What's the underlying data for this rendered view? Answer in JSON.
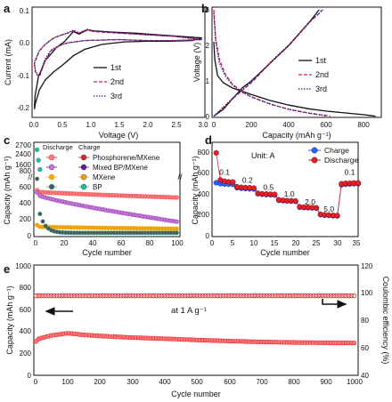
{
  "colors": {
    "black": "#111111",
    "red": "#e0202a",
    "red_dashed": "#d81b60",
    "purple": "#6a1b9a",
    "navy": "#1a237e",
    "blue": "#2962ff",
    "pink": "#e040fb",
    "gold": "#f4a300",
    "teal": "#17c3a6",
    "gray": "#555555",
    "red_light": "#ff7a7a",
    "purple_light": "#c875d8"
  },
  "chart_data": [
    {
      "id": "a",
      "panel_label": "a",
      "type": "line",
      "xlabel": "Voltage (V)",
      "ylabel": "Current (mA)",
      "xlim": [
        0.0,
        3.0
      ],
      "ylim": [
        -0.22,
        0.11
      ],
      "xticks": [
        "0.0",
        "0.5",
        "1.0",
        "1.5",
        "2.0",
        "2.5",
        "3.0"
      ],
      "yticks": [
        "-0.2",
        "-0.1",
        "0.0",
        "0.1"
      ],
      "legend": "center-right",
      "series": [
        {
          "name": "1st",
          "color_key": "black",
          "dash": "",
          "x": [
            0.01,
            0.03,
            0.1,
            0.2,
            0.35,
            0.5,
            0.6,
            0.7,
            0.9,
            1.2,
            1.6,
            2.0,
            2.4,
            2.8,
            2.98,
            2.98,
            2.6,
            2.2,
            1.8,
            1.4,
            1.05,
            0.95,
            0.8,
            0.7,
            0.55,
            0.4,
            0.2,
            0.08,
            0.02,
            0.01
          ],
          "y": [
            -0.2,
            -0.18,
            -0.14,
            -0.11,
            -0.085,
            -0.065,
            -0.05,
            -0.035,
            -0.015,
            0.0,
            0.008,
            0.01,
            0.01,
            0.012,
            0.02,
            0.02,
            0.025,
            0.03,
            0.035,
            0.038,
            0.042,
            0.045,
            0.032,
            0.04,
            0.01,
            -0.01,
            -0.05,
            -0.1,
            -0.16,
            -0.2
          ]
        },
        {
          "name": "2nd",
          "color_key": "red_dashed",
          "dash": "4,2",
          "x": [
            0.01,
            0.03,
            0.1,
            0.2,
            0.3,
            0.4,
            0.5,
            0.6,
            0.9,
            1.5,
            2.0,
            2.5,
            2.98,
            2.98,
            2.5,
            2.0,
            1.5,
            1.05,
            0.95,
            0.8,
            0.7,
            0.6,
            0.5,
            0.35,
            0.2,
            0.1,
            0.03,
            0.01
          ],
          "y": [
            -0.06,
            -0.09,
            -0.1,
            -0.05,
            -0.02,
            -0.01,
            0.0,
            0.005,
            0.012,
            0.015,
            0.012,
            0.012,
            0.015,
            0.015,
            0.025,
            0.03,
            0.035,
            0.04,
            0.046,
            0.035,
            0.042,
            0.035,
            0.03,
            0.02,
            0.0,
            -0.02,
            -0.05,
            -0.06
          ]
        },
        {
          "name": "3rd",
          "color_key": "navy",
          "dash": "1.5,1.5",
          "x": [
            0.01,
            0.03,
            0.1,
            0.2,
            0.3,
            0.4,
            0.5,
            0.6,
            0.9,
            1.5,
            2.0,
            2.5,
            2.98,
            2.98,
            2.5,
            2.0,
            1.5,
            1.05,
            0.95,
            0.8,
            0.7,
            0.6,
            0.5,
            0.35,
            0.2,
            0.1,
            0.03,
            0.01
          ],
          "y": [
            -0.055,
            -0.085,
            -0.095,
            -0.045,
            -0.018,
            -0.008,
            0.0,
            0.005,
            0.012,
            0.015,
            0.012,
            0.012,
            0.015,
            0.015,
            0.025,
            0.03,
            0.036,
            0.042,
            0.047,
            0.036,
            0.044,
            0.036,
            0.03,
            0.02,
            0.0,
            -0.018,
            -0.045,
            -0.055
          ]
        }
      ]
    },
    {
      "id": "b",
      "panel_label": "b",
      "type": "line",
      "xlabel": "Capacity (mAh g⁻¹)",
      "ylabel": "Voltage (V)",
      "xlim": [
        0,
        900
      ],
      "ylim": [
        0,
        3
      ],
      "xticks": [
        "0",
        "200",
        "400",
        "600",
        "800"
      ],
      "yticks": [
        "0",
        "1",
        "2",
        "3"
      ],
      "legend": "center-right",
      "series": [
        {
          "name": "1st",
          "color_key": "black",
          "dash": "",
          "x": [
            0,
            5,
            20,
            50,
            100,
            200,
            300,
            400,
            500,
            600,
            700,
            800,
            840,
            860,
            null,
            0,
            50,
            100,
            150,
            200,
            300,
            400,
            500,
            530,
            560
          ],
          "y": [
            2.1,
            1.6,
            1.15,
            0.95,
            0.8,
            0.62,
            0.45,
            0.32,
            0.22,
            0.15,
            0.1,
            0.05,
            0.02,
            0.01,
            null,
            0.01,
            0.2,
            0.5,
            0.8,
            1.0,
            1.5,
            2.0,
            2.6,
            2.8,
            3.0
          ]
        },
        {
          "name": "2nd",
          "color_key": "red_dashed",
          "dash": "4,2",
          "x": [
            0,
            10,
            30,
            60,
            100,
            150,
            200,
            300,
            400,
            500,
            600,
            620,
            null,
            0,
            50,
            100,
            200,
            300,
            400,
            500,
            560,
            580
          ],
          "y": [
            3.0,
            2.2,
            1.6,
            1.2,
            0.9,
            0.7,
            0.55,
            0.35,
            0.2,
            0.1,
            0.03,
            0.01,
            null,
            0.01,
            0.25,
            0.5,
            0.95,
            1.5,
            2.0,
            2.6,
            2.9,
            3.0
          ]
        },
        {
          "name": "3rd",
          "color_key": "navy",
          "dash": "1.5,1.5",
          "x": [
            0,
            10,
            30,
            60,
            100,
            150,
            200,
            300,
            400,
            500,
            580,
            600,
            null,
            0,
            50,
            100,
            200,
            300,
            400,
            500,
            560,
            575
          ],
          "y": [
            2.9,
            2.1,
            1.5,
            1.15,
            0.88,
            0.68,
            0.55,
            0.35,
            0.2,
            0.1,
            0.03,
            0.01,
            null,
            0.01,
            0.26,
            0.52,
            0.97,
            1.52,
            2.02,
            2.62,
            2.9,
            3.0
          ]
        }
      ]
    },
    {
      "id": "c",
      "panel_label": "c",
      "type": "scatter",
      "xlabel": "Cycle number",
      "ylabel": "Capacity (mAh g⁻¹)",
      "xlim": [
        0,
        100
      ],
      "ylim": [
        0,
        800
      ],
      "xticks": [
        "0",
        "20",
        "40",
        "60",
        "80",
        "100"
      ],
      "yticks": [
        "0",
        "200",
        "400",
        "600",
        "800"
      ],
      "upper_ticks": [
        "1600",
        "2400",
        "2700"
      ],
      "legend_headers": [
        "Discharge",
        "Charge"
      ],
      "legend": "top-right",
      "series": [
        {
          "name": "Phosphorene/MXene",
          "color_key": "red",
          "light_key": "red_light",
          "first": 560,
          "start": 540,
          "end": 470
        },
        {
          "name": "Mixed BP/MXene",
          "color_key": "purple",
          "light_key": "purple_light",
          "first": 530,
          "start": 500,
          "end": 170
        },
        {
          "name": "MXene",
          "color_key": "gold",
          "light_key": "gold",
          "first": 130,
          "start": 110,
          "end": 85
        },
        {
          "name": "BP",
          "color_key": "teal",
          "light_key": "gray",
          "first": 700,
          "start": 300,
          "end": 35
        }
      ]
    },
    {
      "id": "d",
      "panel_label": "d",
      "type": "scatter",
      "xlabel": "Cycle number",
      "ylabel": "Capacity (mAh g⁻¹)",
      "xlim": [
        0,
        35
      ],
      "ylim": [
        0,
        900
      ],
      "xticks": [
        "0",
        "5",
        "10",
        "15",
        "20",
        "25",
        "30",
        "35"
      ],
      "yticks": [
        "0",
        "200",
        "400",
        "600",
        "800"
      ],
      "unit_label": "Unit: A",
      "rate_labels": [
        {
          "text": "0.1",
          "x": 3.0,
          "y": 610
        },
        {
          "text": "0.2",
          "x": 8.5,
          "y": 530
        },
        {
          "text": "0.5",
          "x": 13.5,
          "y": 460
        },
        {
          "text": "1.0",
          "x": 18.5,
          "y": 390
        },
        {
          "text": "2.0",
          "x": 23.5,
          "y": 310
        },
        {
          "text": "5.0",
          "x": 28.0,
          "y": 240
        },
        {
          "text": "0.1",
          "x": 33.0,
          "y": 610
        }
      ],
      "legend": "top-right",
      "series": [
        {
          "name": "Charge",
          "color_key": "blue",
          "values": [
            530,
            520,
            518,
            516,
            514,
            480,
            475,
            472,
            470,
            468,
            420,
            415,
            412,
            410,
            408,
            355,
            350,
            348,
            346,
            344,
            285,
            282,
            280,
            278,
            276,
            210,
            205,
            203,
            200,
            198,
            510,
            515,
            518,
            520,
            520
          ]
        },
        {
          "name": "Discharge",
          "color_key": "red",
          "values": [
            830,
            560,
            545,
            540,
            538,
            490,
            485,
            482,
            480,
            478,
            425,
            420,
            418,
            416,
            414,
            360,
            355,
            352,
            350,
            348,
            290,
            286,
            284,
            282,
            280,
            215,
            210,
            207,
            204,
            202,
            520,
            525,
            526,
            528,
            528
          ]
        }
      ]
    },
    {
      "id": "e",
      "panel_label": "e",
      "type": "scatter",
      "xlabel": "Cycle number",
      "ylabel": "Capacity (mAh g⁻¹)",
      "ylabel_right": "Coulombic efficiency (%)",
      "xlim": [
        0,
        1000
      ],
      "ylim": [
        0,
        1000
      ],
      "ylim_right": [
        40,
        120
      ],
      "xticks": [
        "0",
        "100",
        "200",
        "300",
        "400",
        "500",
        "600",
        "700",
        "800",
        "900",
        "1000"
      ],
      "yticks": [
        "0",
        "200",
        "400",
        "600",
        "800",
        "1000"
      ],
      "yticks_right": [
        "40",
        "60",
        "80",
        "100",
        "120"
      ],
      "annotation": "at 1 A g⁻¹",
      "series": [
        {
          "name": "Capacity",
          "color_key": "red",
          "axis": "left",
          "profile_x": [
            0,
            10,
            50,
            100,
            150,
            200,
            300,
            400,
            500,
            600,
            700,
            800,
            900,
            1000
          ],
          "profile_y": [
            300,
            330,
            360,
            380,
            365,
            355,
            340,
            330,
            318,
            308,
            300,
            295,
            292,
            290
          ]
        },
        {
          "name": "Coulombic efficiency",
          "color_key": "red",
          "axis": "right",
          "profile_x": [
            0,
            1000
          ],
          "profile_y": [
            98,
            98
          ]
        }
      ]
    }
  ]
}
